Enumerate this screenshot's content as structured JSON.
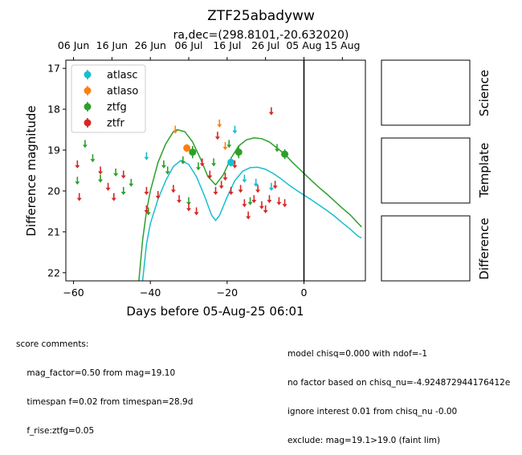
{
  "chart_data": {
    "type": "scatter",
    "title": "ZTF25abadyww",
    "subtitle": "ra,dec=(298.8101,-20.632020)",
    "xlabel": "Days before 05-Aug-25 06:01",
    "ylabel": "Difference magnitude",
    "xlim": [
      -62,
      16
    ],
    "ylim": [
      22.2,
      16.8
    ],
    "y_inverted": true,
    "x_ticks": [
      -60,
      -40,
      -20,
      0
    ],
    "y_ticks": [
      17,
      18,
      19,
      20,
      21,
      22
    ],
    "top_axis_ticks": [
      {
        "x": -60,
        "label": "06 Jun"
      },
      {
        "x": -50,
        "label": "16 Jun"
      },
      {
        "x": -40,
        "label": "26 Jun"
      },
      {
        "x": -30,
        "label": "06 Jul"
      },
      {
        "x": -20,
        "label": "16 Jul"
      },
      {
        "x": -10,
        "label": "26 Jul"
      },
      {
        "x": 0,
        "label": "05 Aug"
      },
      {
        "x": 10,
        "label": "15 Aug"
      }
    ],
    "vline_x": 0,
    "legend": {
      "position": "upper-left"
    },
    "series": [
      {
        "name": "atlasc",
        "color": "#17becf",
        "detections": [
          [
            -19.0,
            19.3,
            0.1
          ]
        ],
        "limits": [
          [
            -41.0,
            19.15
          ],
          [
            -18.0,
            18.5
          ],
          [
            -15.5,
            19.7
          ],
          [
            -12.5,
            19.8
          ],
          [
            -8.5,
            19.9
          ]
        ]
      },
      {
        "name": "atlaso",
        "color": "#ff7f0e",
        "detections": [
          [
            -30.5,
            18.95,
            0.1
          ]
        ],
        "limits": [
          [
            -33.5,
            18.5
          ],
          [
            -22.0,
            18.35
          ],
          [
            -20.5,
            18.9
          ]
        ]
      },
      {
        "name": "ztfg",
        "color": "#2ca02c",
        "detections": [
          [
            -29.0,
            19.05,
            0.15
          ],
          [
            -17.0,
            19.05,
            0.15
          ],
          [
            -5.0,
            19.1,
            0.12
          ]
        ],
        "limits": [
          [
            -57.0,
            18.85
          ],
          [
            -59.0,
            19.75
          ],
          [
            -55.0,
            19.2
          ],
          [
            -53.0,
            19.7
          ],
          [
            -49.0,
            19.55
          ],
          [
            -47.0,
            20.0
          ],
          [
            -45.0,
            19.8
          ],
          [
            -40.5,
            20.5
          ],
          [
            -36.5,
            19.35
          ],
          [
            -35.5,
            19.5
          ],
          [
            -31.5,
            19.25
          ],
          [
            -30.0,
            20.25
          ],
          [
            -27.5,
            19.4
          ],
          [
            -23.5,
            19.3
          ],
          [
            -19.5,
            18.85
          ],
          [
            -14.0,
            20.25
          ],
          [
            -7.0,
            18.95
          ]
        ]
      },
      {
        "name": "ztfr",
        "color": "#d62728",
        "detections": [],
        "limits": [
          [
            -59.0,
            19.35
          ],
          [
            -58.5,
            20.15
          ],
          [
            -53.0,
            19.5
          ],
          [
            -51.0,
            19.9
          ],
          [
            -49.5,
            20.15
          ],
          [
            -47.0,
            19.6
          ],
          [
            -41.0,
            20.45
          ],
          [
            -41.0,
            20.0
          ],
          [
            -38.0,
            20.1
          ],
          [
            -34.0,
            19.95
          ],
          [
            -32.5,
            20.2
          ],
          [
            -30.0,
            20.4
          ],
          [
            -28.0,
            20.5
          ],
          [
            -26.5,
            19.3
          ],
          [
            -24.5,
            19.6
          ],
          [
            -23.0,
            20.0
          ],
          [
            -22.5,
            18.65
          ],
          [
            -21.5,
            19.85
          ],
          [
            -20.5,
            19.65
          ],
          [
            -19.0,
            20.0
          ],
          [
            -18.0,
            19.35
          ],
          [
            -16.5,
            19.95
          ],
          [
            -15.5,
            20.3
          ],
          [
            -14.5,
            20.6
          ],
          [
            -13.0,
            20.2
          ],
          [
            -12.0,
            19.95
          ],
          [
            -11.0,
            20.35
          ],
          [
            -10.0,
            20.45
          ],
          [
            -9.0,
            20.2
          ],
          [
            -8.5,
            18.05
          ],
          [
            -7.5,
            19.85
          ],
          [
            -6.5,
            20.25
          ],
          [
            -5.0,
            20.3
          ]
        ]
      }
    ],
    "model_curves": [
      {
        "color": "#17becf",
        "points": [
          [
            -42.0,
            22.2
          ],
          [
            -41.0,
            21.3
          ],
          [
            -40.0,
            20.8
          ],
          [
            -38.0,
            20.2
          ],
          [
            -36.0,
            19.75
          ],
          [
            -34.0,
            19.4
          ],
          [
            -32.0,
            19.25
          ],
          [
            -30.0,
            19.35
          ],
          [
            -28.0,
            19.65
          ],
          [
            -26.0,
            20.1
          ],
          [
            -24.0,
            20.6
          ],
          [
            -23.0,
            20.72
          ],
          [
            -22.0,
            20.6
          ],
          [
            -20.0,
            20.15
          ],
          [
            -18.0,
            19.75
          ],
          [
            -16.0,
            19.52
          ],
          [
            -14.0,
            19.43
          ],
          [
            -12.0,
            19.42
          ],
          [
            -10.0,
            19.47
          ],
          [
            -8.0,
            19.57
          ],
          [
            -6.0,
            19.7
          ],
          [
            -4.0,
            19.85
          ],
          [
            -2.0,
            19.98
          ],
          [
            0.0,
            20.1
          ],
          [
            2.0,
            20.22
          ],
          [
            4.0,
            20.35
          ],
          [
            6.0,
            20.48
          ],
          [
            8.0,
            20.62
          ],
          [
            10.0,
            20.78
          ],
          [
            12.0,
            20.93
          ],
          [
            14.0,
            21.1
          ],
          [
            15.0,
            21.15
          ]
        ]
      },
      {
        "color": "#2ca02c",
        "points": [
          [
            -43.0,
            22.2
          ],
          [
            -42.0,
            21.2
          ],
          [
            -41.0,
            20.5
          ],
          [
            -40.0,
            20.0
          ],
          [
            -38.0,
            19.3
          ],
          [
            -36.0,
            18.85
          ],
          [
            -34.0,
            18.55
          ],
          [
            -33.0,
            18.5
          ],
          [
            -31.0,
            18.55
          ],
          [
            -29.0,
            18.8
          ],
          [
            -27.0,
            19.2
          ],
          [
            -25.0,
            19.65
          ],
          [
            -23.0,
            19.85
          ],
          [
            -21.0,
            19.6
          ],
          [
            -19.0,
            19.2
          ],
          [
            -17.0,
            18.9
          ],
          [
            -15.0,
            18.75
          ],
          [
            -13.0,
            18.7
          ],
          [
            -11.0,
            18.72
          ],
          [
            -9.0,
            18.8
          ],
          [
            -7.0,
            18.95
          ],
          [
            -5.0,
            19.1
          ],
          [
            -3.0,
            19.3
          ],
          [
            -1.0,
            19.48
          ],
          [
            0.0,
            19.57
          ],
          [
            2.0,
            19.75
          ],
          [
            4.0,
            19.92
          ],
          [
            6.0,
            20.08
          ],
          [
            8.0,
            20.25
          ],
          [
            10.0,
            20.42
          ],
          [
            12.0,
            20.58
          ],
          [
            14.0,
            20.78
          ],
          [
            15.0,
            20.88
          ]
        ]
      }
    ]
  },
  "side_panels": [
    {
      "label": "Science"
    },
    {
      "label": "Template"
    },
    {
      "label": "Difference"
    }
  ],
  "comments_left": {
    "line0": "score comments:",
    "line1": "    mag_factor=0.50 from mag=19.10",
    "line2": "    timespan f=0.02 from timespan=28.9d",
    "line3": "    f_rise:ztfg=0.05"
  },
  "comments_right": {
    "line0": "model chisq=0.000 with ndof=-1",
    "line1": "no factor based on chisq_nu=-4.924872944176412e",
    "line2": "ignore interest 0.01 from chisq_nu -0.00",
    "line3": "exclude: mag=19.1>19.0 (faint lim)"
  }
}
